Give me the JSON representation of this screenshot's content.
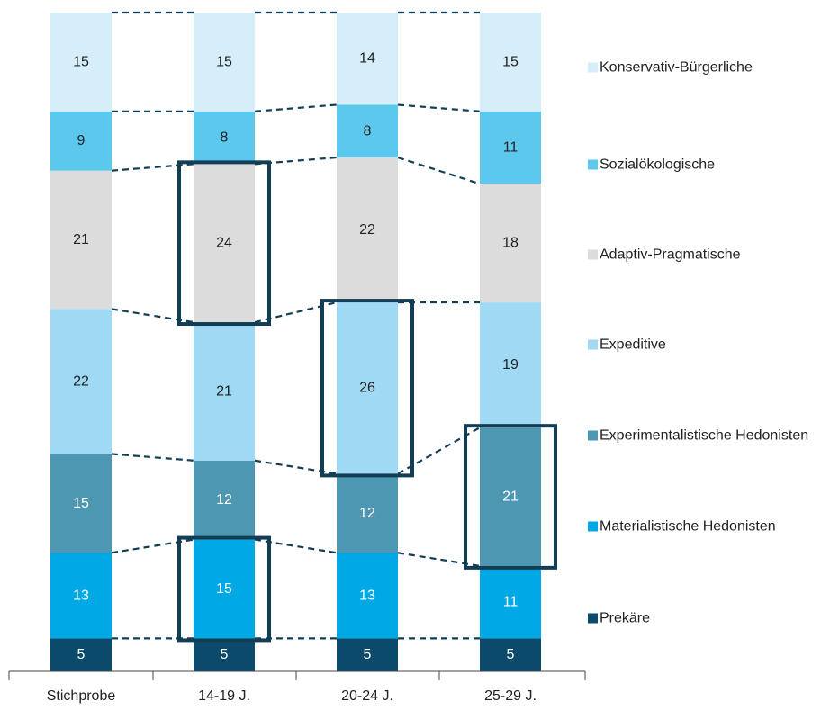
{
  "chart_data": {
    "type": "bar",
    "stacked": true,
    "percent_stacked": true,
    "title": "",
    "xlabel": "",
    "ylabel": "",
    "categories": [
      "Stichprobe",
      "14-19 J.",
      "20-24 J.",
      "25-29 J."
    ],
    "series": [
      {
        "name": "Prekäre",
        "color": "#0b4a6b",
        "label_color": "#ffffff",
        "values": [
          5,
          5,
          5,
          5
        ]
      },
      {
        "name": "Materialistische Hedonisten",
        "color": "#00a8e6",
        "label_color": "#ffffff",
        "values": [
          13,
          15,
          13,
          11
        ]
      },
      {
        "name": "Experimentalistische Hedonisten",
        "color": "#4e97b3",
        "label_color": "#ffffff",
        "values": [
          15,
          12,
          12,
          21
        ]
      },
      {
        "name": "Expeditive",
        "color": "#9fd9f4",
        "label_color": "#222222",
        "values": [
          22,
          21,
          26,
          19
        ]
      },
      {
        "name": "Adaptiv-Pragmatische",
        "color": "#dcdcdc",
        "label_color": "#222222",
        "values": [
          21,
          24,
          22,
          18
        ]
      },
      {
        "name": "Sozialökologische",
        "color": "#5cc8ee",
        "label_color": "#222222",
        "values": [
          9,
          8,
          8,
          11
        ]
      },
      {
        "name": "Konservativ-Bürgerliche",
        "color": "#d6eef9",
        "label_color": "#222222",
        "values": [
          15,
          15,
          14,
          15
        ]
      }
    ],
    "highlights": [
      {
        "category": "14-19 J.",
        "series": "Adaptiv-Pragmatische"
      },
      {
        "category": "14-19 J.",
        "series": "Materialistische Hedonisten"
      },
      {
        "category": "20-24 J.",
        "series": "Expeditive"
      },
      {
        "category": "25-29 J.",
        "series": "Experimentalistische Hedonisten"
      }
    ],
    "highlight_color": "#123e55",
    "connector_color": "#123e55",
    "legend_position": "right",
    "grid": false
  }
}
